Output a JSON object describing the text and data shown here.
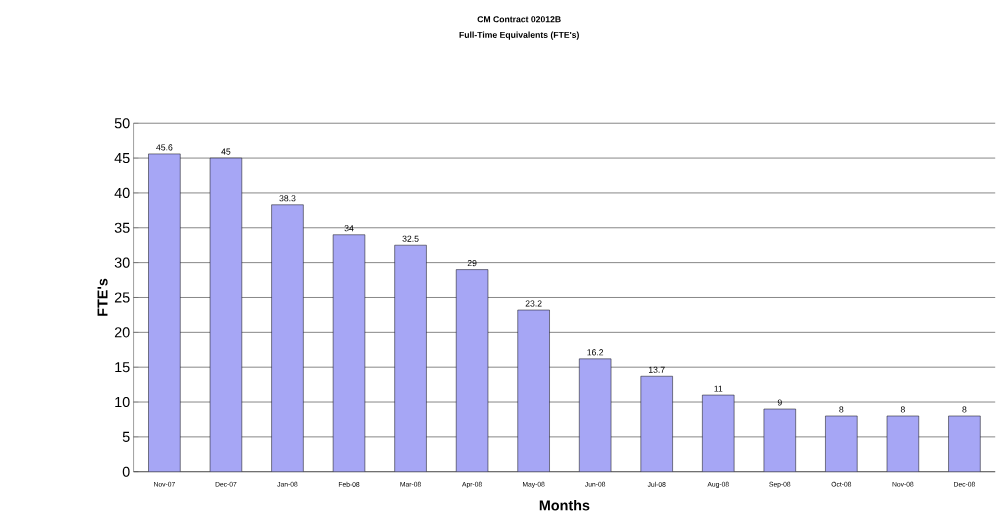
{
  "chart_data": {
    "type": "bar",
    "title": "CM Contract 02012B",
    "subtitle": "Full-Time Equivalents (FTE's)",
    "xlabel": "Months",
    "ylabel": "FTE's",
    "categories": [
      "Nov-07",
      "Dec-07",
      "Jan-08",
      "Feb-08",
      "Mar-08",
      "Apr-08",
      "May-08",
      "Jun-08",
      "Jul-08",
      "Aug-08",
      "Sep-08",
      "Oct-08",
      "Nov-08",
      "Dec-08"
    ],
    "values": [
      45.6,
      45,
      38.3,
      34,
      32.5,
      29,
      23.2,
      16.2,
      13.7,
      11,
      9,
      8,
      8,
      8
    ],
    "color": "#a6a6f5",
    "ylim": [
      0,
      50
    ],
    "yticks": [
      0,
      5,
      10,
      15,
      20,
      25,
      30,
      35,
      40,
      45,
      50
    ],
    "grid": "y",
    "data_labels": true
  }
}
